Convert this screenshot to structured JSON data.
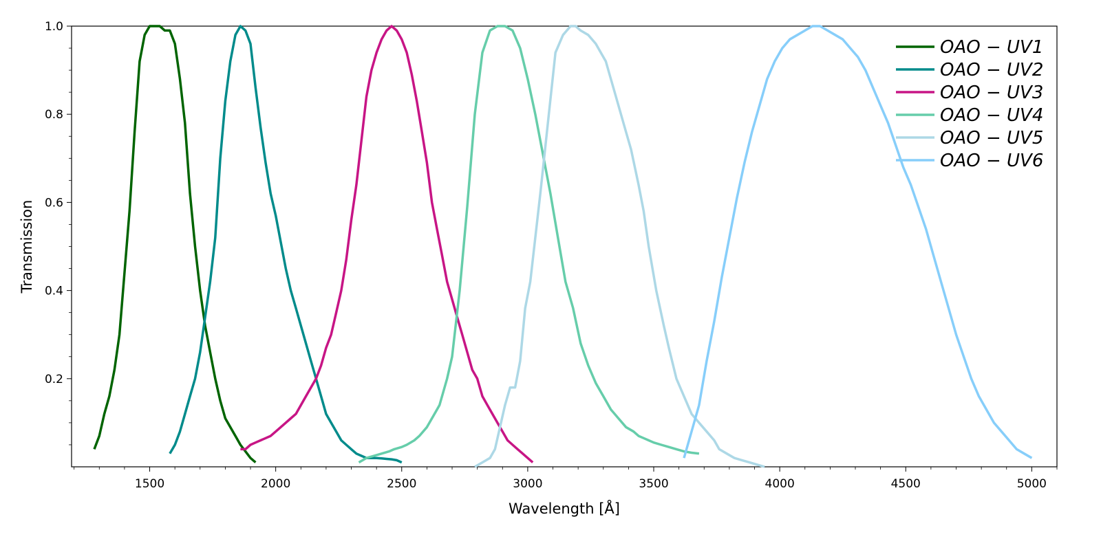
{
  "chart_data": {
    "type": "line",
    "title": "",
    "xlabel": "Wavelength [Å]",
    "ylabel": "Transmission",
    "xlim": [
      1190,
      5100
    ],
    "ylim": [
      0,
      1.0
    ],
    "x_ticks": [
      1500,
      2000,
      2500,
      3000,
      3500,
      4000,
      4500,
      5000
    ],
    "x_tick_labels": [
      "1500",
      "2000",
      "2500",
      "3000",
      "3500",
      "4000",
      "4500",
      "5000"
    ],
    "y_ticks": [
      0.2,
      0.4,
      0.6,
      0.8,
      1.0
    ],
    "y_tick_labels": [
      "0.2",
      "0.4",
      "0.6",
      "0.8",
      "1.0"
    ],
    "grid": false,
    "legend_position": "top-right",
    "series": [
      {
        "name": "OAO − UV1",
        "color": "#006400",
        "x": [
          1280,
          1300,
          1320,
          1340,
          1360,
          1380,
          1400,
          1420,
          1440,
          1460,
          1480,
          1500,
          1520,
          1540,
          1560,
          1580,
          1600,
          1620,
          1640,
          1660,
          1680,
          1700,
          1720,
          1740,
          1760,
          1780,
          1800,
          1820,
          1840,
          1860,
          1880,
          1900,
          1920
        ],
        "y": [
          0.04,
          0.07,
          0.12,
          0.16,
          0.22,
          0.3,
          0.44,
          0.58,
          0.76,
          0.92,
          0.98,
          1.0,
          1.0,
          1.0,
          0.99,
          0.99,
          0.96,
          0.88,
          0.78,
          0.62,
          0.5,
          0.4,
          0.32,
          0.26,
          0.2,
          0.15,
          0.11,
          0.09,
          0.07,
          0.05,
          0.035,
          0.02,
          0.01
        ]
      },
      {
        "name": "OAO − UV2",
        "color": "#008B8B",
        "x": [
          1580,
          1600,
          1620,
          1640,
          1660,
          1680,
          1700,
          1720,
          1740,
          1760,
          1780,
          1800,
          1820,
          1840,
          1860,
          1880,
          1900,
          1920,
          1940,
          1960,
          1980,
          2000,
          2020,
          2040,
          2060,
          2080,
          2100,
          2120,
          2140,
          2160,
          2180,
          2200,
          2220,
          2240,
          2260,
          2280,
          2300,
          2320,
          2340,
          2360,
          2380,
          2400,
          2420,
          2440,
          2460,
          2480,
          2500
        ],
        "y": [
          0.03,
          0.05,
          0.08,
          0.12,
          0.16,
          0.2,
          0.26,
          0.34,
          0.42,
          0.52,
          0.7,
          0.83,
          0.92,
          0.98,
          1.0,
          0.99,
          0.96,
          0.86,
          0.77,
          0.69,
          0.62,
          0.57,
          0.51,
          0.45,
          0.4,
          0.36,
          0.32,
          0.28,
          0.24,
          0.2,
          0.16,
          0.12,
          0.1,
          0.08,
          0.06,
          0.05,
          0.04,
          0.03,
          0.025,
          0.02,
          0.02,
          0.02,
          0.019,
          0.018,
          0.017,
          0.015,
          0.01
        ]
      },
      {
        "name": "OAO − UV3",
        "color": "#C71585",
        "x": [
          1860,
          1880,
          1900,
          1920,
          1940,
          1960,
          1980,
          2000,
          2020,
          2040,
          2060,
          2080,
          2100,
          2120,
          2140,
          2160,
          2180,
          2200,
          2220,
          2240,
          2260,
          2280,
          2300,
          2320,
          2340,
          2360,
          2380,
          2400,
          2420,
          2440,
          2460,
          2480,
          2500,
          2520,
          2540,
          2560,
          2580,
          2600,
          2620,
          2640,
          2660,
          2680,
          2700,
          2720,
          2740,
          2760,
          2780,
          2800,
          2820,
          2840,
          2860,
          2880,
          2900,
          2920,
          2940,
          2960,
          2980,
          3000,
          3020
        ],
        "y": [
          0.04,
          0.04,
          0.05,
          0.055,
          0.06,
          0.065,
          0.07,
          0.08,
          0.09,
          0.1,
          0.11,
          0.12,
          0.14,
          0.16,
          0.18,
          0.2,
          0.23,
          0.27,
          0.3,
          0.35,
          0.4,
          0.47,
          0.56,
          0.64,
          0.74,
          0.84,
          0.9,
          0.94,
          0.97,
          0.99,
          1.0,
          0.99,
          0.97,
          0.94,
          0.89,
          0.83,
          0.76,
          0.69,
          0.6,
          0.54,
          0.48,
          0.42,
          0.38,
          0.34,
          0.3,
          0.26,
          0.22,
          0.2,
          0.16,
          0.14,
          0.12,
          0.1,
          0.08,
          0.06,
          0.05,
          0.04,
          0.03,
          0.02,
          0.01
        ]
      },
      {
        "name": "OAO − UV4",
        "color": "#66CDAA",
        "x": [
          2330,
          2360,
          2390,
          2420,
          2450,
          2470,
          2500,
          2520,
          2550,
          2570,
          2600,
          2630,
          2650,
          2680,
          2700,
          2730,
          2760,
          2790,
          2820,
          2850,
          2880,
          2910,
          2940,
          2970,
          3000,
          3030,
          3060,
          3090,
          3120,
          3150,
          3180,
          3210,
          3240,
          3270,
          3300,
          3330,
          3360,
          3390,
          3420,
          3440,
          3460,
          3480,
          3500,
          3530,
          3560,
          3590,
          3620,
          3650,
          3680
        ],
        "y": [
          0.01,
          0.02,
          0.025,
          0.03,
          0.035,
          0.04,
          0.045,
          0.05,
          0.06,
          0.07,
          0.09,
          0.12,
          0.14,
          0.2,
          0.25,
          0.4,
          0.59,
          0.8,
          0.94,
          0.99,
          1.0,
          1.0,
          0.99,
          0.95,
          0.88,
          0.8,
          0.71,
          0.62,
          0.52,
          0.42,
          0.36,
          0.28,
          0.23,
          0.19,
          0.16,
          0.13,
          0.11,
          0.09,
          0.08,
          0.07,
          0.065,
          0.06,
          0.055,
          0.05,
          0.045,
          0.04,
          0.035,
          0.032,
          0.03
        ]
      },
      {
        "name": "OAO − UV5",
        "color": "#ADD8E6",
        "x": [
          2790,
          2820,
          2850,
          2870,
          2890,
          2910,
          2930,
          2950,
          2970,
          2990,
          3010,
          3030,
          3050,
          3080,
          3110,
          3140,
          3170,
          3190,
          3210,
          3240,
          3270,
          3290,
          3310,
          3340,
          3370,
          3390,
          3410,
          3440,
          3460,
          3480,
          3510,
          3540,
          3560,
          3590,
          3620,
          3650,
          3680,
          3710,
          3740,
          3760,
          3790,
          3820,
          3850,
          3880,
          3910,
          3940
        ],
        "y": [
          0.0,
          0.01,
          0.02,
          0.04,
          0.09,
          0.14,
          0.18,
          0.18,
          0.24,
          0.36,
          0.42,
          0.52,
          0.62,
          0.78,
          0.94,
          0.98,
          1.0,
          1.0,
          0.99,
          0.98,
          0.96,
          0.94,
          0.92,
          0.86,
          0.8,
          0.76,
          0.72,
          0.64,
          0.58,
          0.5,
          0.4,
          0.32,
          0.27,
          0.2,
          0.16,
          0.12,
          0.1,
          0.08,
          0.06,
          0.04,
          0.03,
          0.02,
          0.015,
          0.01,
          0.005,
          0.0
        ]
      },
      {
        "name": "OAO − UV6",
        "color": "#87CEFA",
        "x": [
          3620,
          3650,
          3680,
          3710,
          3740,
          3770,
          3800,
          3830,
          3860,
          3890,
          3920,
          3950,
          3980,
          4010,
          4040,
          4070,
          4100,
          4130,
          4160,
          4190,
          4220,
          4250,
          4280,
          4310,
          4340,
          4370,
          4400,
          4430,
          4460,
          4490,
          4520,
          4550,
          4580,
          4610,
          4640,
          4670,
          4700,
          4730,
          4760,
          4790,
          4820,
          4850,
          4880,
          4910,
          4940,
          4970,
          5000
        ],
        "y": [
          0.02,
          0.08,
          0.14,
          0.24,
          0.33,
          0.43,
          0.52,
          0.61,
          0.69,
          0.76,
          0.82,
          0.88,
          0.92,
          0.95,
          0.97,
          0.98,
          0.99,
          1.0,
          1.0,
          0.99,
          0.98,
          0.97,
          0.95,
          0.93,
          0.9,
          0.86,
          0.82,
          0.78,
          0.73,
          0.68,
          0.64,
          0.59,
          0.54,
          0.48,
          0.42,
          0.36,
          0.3,
          0.25,
          0.2,
          0.16,
          0.13,
          0.1,
          0.08,
          0.06,
          0.04,
          0.03,
          0.02
        ]
      }
    ]
  }
}
